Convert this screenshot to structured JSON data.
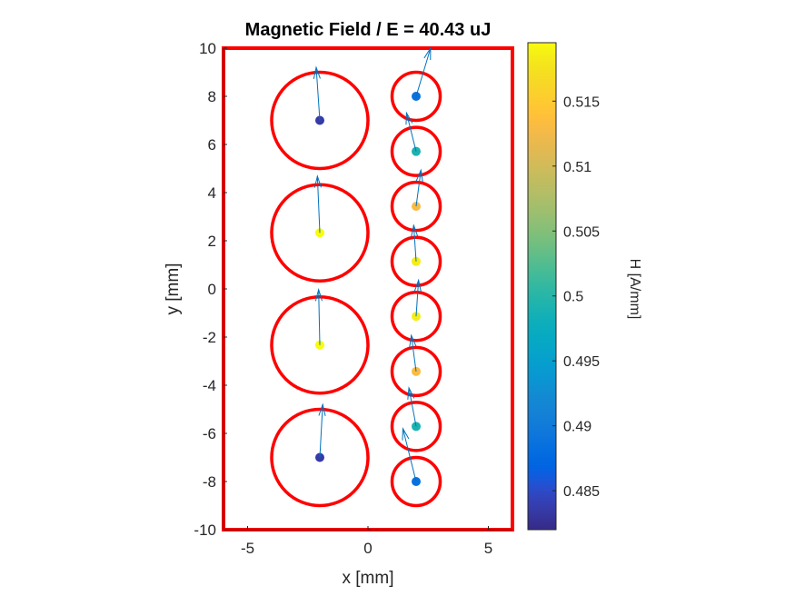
{
  "chart_data": {
    "type": "scatter",
    "title": "Magnetic Field  / E = 40.43 uJ",
    "xlabel": "x [mm]",
    "ylabel": "y [mm]",
    "xlim": [
      -6,
      6
    ],
    "ylim": [
      -10,
      10
    ],
    "xticks": [
      -5,
      0,
      5
    ],
    "xtick_labels": [
      "-5",
      "0",
      "5"
    ],
    "yticks": [
      -10,
      -8,
      -6,
      -4,
      -2,
      0,
      2,
      4,
      6,
      8,
      10
    ],
    "ytick_labels": [
      "-10",
      "-8",
      "-6",
      "-4",
      "-2",
      "0",
      "2",
      "4",
      "6",
      "8",
      "10"
    ],
    "grid": false,
    "boundary": {
      "xmin": -6,
      "xmax": 6,
      "ymin": -10,
      "ymax": 10,
      "color": "#ff0000"
    },
    "colorbar": {
      "label": "H [A/mm]",
      "range": [
        0.482,
        0.5195
      ],
      "ticks": [
        0.485,
        0.49,
        0.495,
        0.5,
        0.505,
        0.51,
        0.515
      ],
      "tick_labels": [
        "0.485",
        "0.49",
        "0.495",
        "0.5",
        "0.505",
        "0.51",
        "0.515"
      ]
    },
    "circles": [
      {
        "x": -2,
        "y": 7,
        "r": 2.0
      },
      {
        "x": -2,
        "y": 2.33,
        "r": 2.0
      },
      {
        "x": -2,
        "y": -2.33,
        "r": 2.0
      },
      {
        "x": -2,
        "y": -7,
        "r": 2.0
      },
      {
        "x": 2,
        "y": 8,
        "r": 1.0
      },
      {
        "x": 2,
        "y": 5.71,
        "r": 1.0
      },
      {
        "x": 2,
        "y": 3.43,
        "r": 1.0
      },
      {
        "x": 2,
        "y": 1.14,
        "r": 1.0
      },
      {
        "x": 2,
        "y": -1.14,
        "r": 1.0
      },
      {
        "x": 2,
        "y": -3.43,
        "r": 1.0
      },
      {
        "x": 2,
        "y": -5.71,
        "r": 1.0
      },
      {
        "x": 2,
        "y": -8,
        "r": 1.0
      }
    ],
    "points": [
      {
        "x": -2,
        "y": 7,
        "H": 0.4835,
        "u": -0.15,
        "v": 2.2
      },
      {
        "x": -2,
        "y": 2.33,
        "H": 0.5195,
        "u": -0.1,
        "v": 2.35
      },
      {
        "x": -2,
        "y": -2.33,
        "H": 0.5195,
        "u": -0.05,
        "v": 2.3
      },
      {
        "x": -2,
        "y": -7,
        "H": 0.4835,
        "u": 0.12,
        "v": 2.2
      },
      {
        "x": 2,
        "y": 8,
        "H": 0.4885,
        "u": 0.6,
        "v": 2.0
      },
      {
        "x": 2,
        "y": 5.71,
        "H": 0.499,
        "u": -0.4,
        "v": 1.6
      },
      {
        "x": 2,
        "y": 3.43,
        "H": 0.513,
        "u": 0.2,
        "v": 1.5
      },
      {
        "x": 2,
        "y": 1.14,
        "H": 0.5185,
        "u": -0.1,
        "v": 1.5
      },
      {
        "x": 2,
        "y": -1.14,
        "H": 0.5185,
        "u": 0.1,
        "v": 1.5
      },
      {
        "x": 2,
        "y": -3.43,
        "H": 0.513,
        "u": -0.2,
        "v": 1.5
      },
      {
        "x": 2,
        "y": -5.71,
        "H": 0.499,
        "u": -0.3,
        "v": 1.6
      },
      {
        "x": 2,
        "y": -8,
        "H": 0.4885,
        "u": -0.55,
        "v": 2.2
      }
    ]
  }
}
